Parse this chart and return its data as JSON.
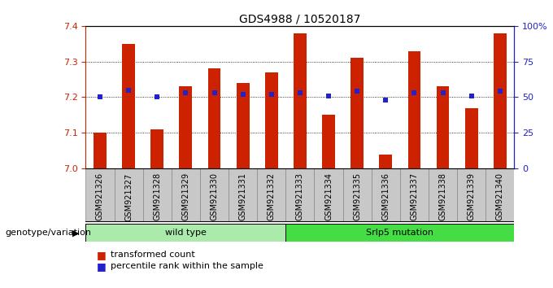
{
  "title": "GDS4988 / 10520187",
  "samples": [
    "GSM921326",
    "GSM921327",
    "GSM921328",
    "GSM921329",
    "GSM921330",
    "GSM921331",
    "GSM921332",
    "GSM921333",
    "GSM921334",
    "GSM921335",
    "GSM921336",
    "GSM921337",
    "GSM921338",
    "GSM921339",
    "GSM921340"
  ],
  "transformed_counts": [
    7.1,
    7.35,
    7.11,
    7.23,
    7.28,
    7.24,
    7.27,
    7.38,
    7.15,
    7.31,
    7.04,
    7.33,
    7.23,
    7.17,
    7.38
  ],
  "percentile_ranks": [
    50,
    55,
    50,
    53,
    53,
    52,
    52,
    53,
    51,
    54,
    48,
    53,
    53,
    51,
    54
  ],
  "bar_color": "#CC2200",
  "dot_color": "#2222CC",
  "ymin": 7.0,
  "ymax": 7.4,
  "yticks": [
    7.0,
    7.1,
    7.2,
    7.3,
    7.4
  ],
  "right_yticks": [
    0,
    25,
    50,
    75,
    100
  ],
  "right_ylabels": [
    "0",
    "25",
    "50",
    "75",
    "100%"
  ],
  "groups": [
    {
      "label": "wild type",
      "start": 0,
      "end": 7,
      "color": "#AAEAAA"
    },
    {
      "label": "Srlp5 mutation",
      "start": 7,
      "end": 15,
      "color": "#44DD44"
    }
  ],
  "group_label": "genotype/variation",
  "legend_bar_label": "transformed count",
  "legend_dot_label": "percentile rank within the sample",
  "title_fontsize": 10,
  "axis_label_color_red": "#CC2200",
  "axis_label_color_blue": "#2222CC",
  "xtick_bg_color": "#C8C8C8"
}
